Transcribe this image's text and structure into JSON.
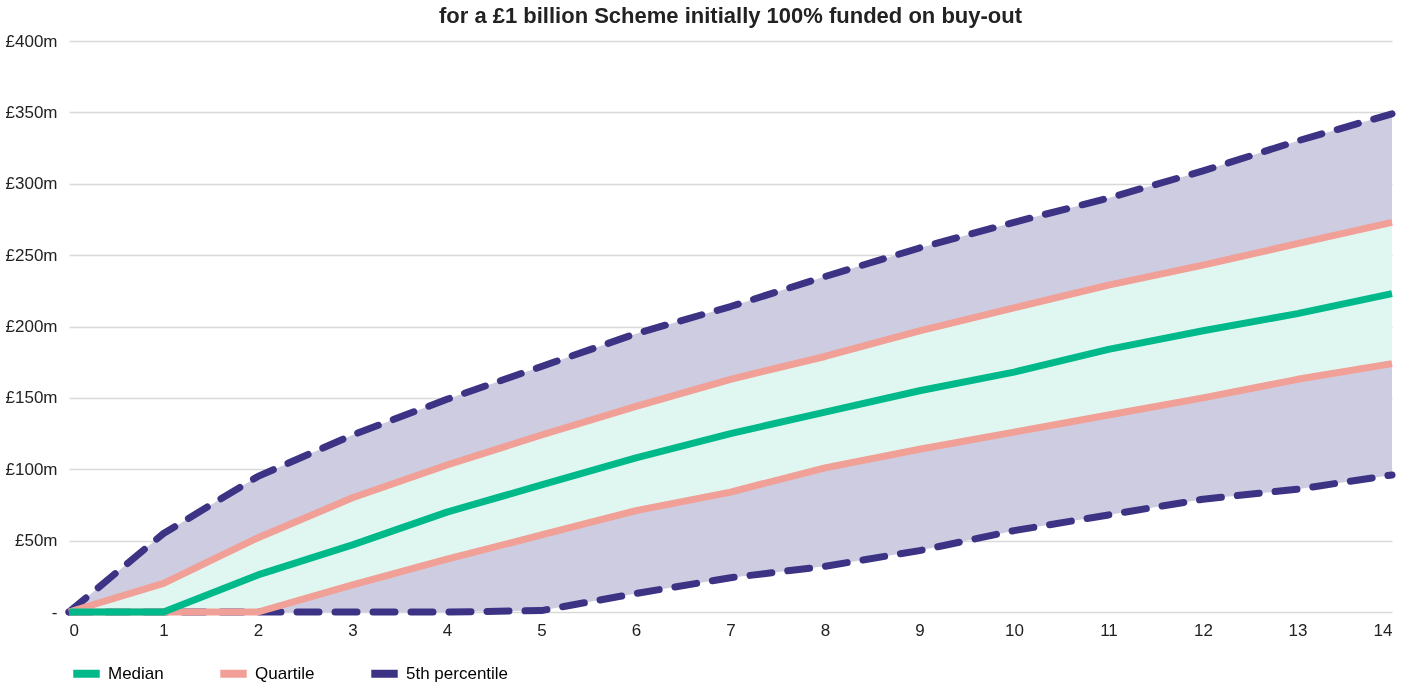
{
  "chart_data": {
    "type": "line",
    "title": "for a £1 billion Scheme initially 100% funded on buy-out",
    "x": [
      0,
      1,
      2,
      3,
      4,
      5,
      6,
      7,
      8,
      9,
      10,
      11,
      12,
      13,
      14
    ],
    "xlim": [
      0,
      14
    ],
    "xticks": [
      0,
      1,
      2,
      3,
      4,
      5,
      6,
      7,
      8,
      9,
      10,
      11,
      12,
      13,
      14
    ],
    "ylim": [
      0,
      400
    ],
    "yticks": [
      {
        "value": 0,
        "label": "-"
      },
      {
        "value": 50,
        "label": "£50m"
      },
      {
        "value": 100,
        "label": "£100m"
      },
      {
        "value": 150,
        "label": "£150m"
      },
      {
        "value": 200,
        "label": "£200m"
      },
      {
        "value": 250,
        "label": "£250m"
      },
      {
        "value": 300,
        "label": "£300m"
      },
      {
        "value": 350,
        "label": "£350m"
      },
      {
        "value": 400,
        "label": "£400m"
      }
    ],
    "grid": "y",
    "legend": "bottom",
    "marker": "none",
    "series": [
      {
        "name": "Median",
        "color": "#00b98a",
        "line_style": "solid",
        "values": [
          0,
          0,
          26,
          47,
          70,
          89,
          108,
          125,
          140,
          155,
          168,
          184,
          197,
          209,
          223
        ],
        "lower": [
          0,
          0,
          0,
          19,
          37,
          54,
          71,
          84,
          101,
          114,
          126,
          138,
          150,
          163,
          174
        ],
        "upper": [
          0,
          20,
          52,
          80,
          103,
          124,
          144,
          163,
          179,
          197,
          213,
          229,
          243,
          258,
          273
        ]
      },
      {
        "name": "Quartile",
        "color": "#f0a096",
        "line_style": "solid",
        "values": [
          0,
          20,
          52,
          80,
          103,
          124,
          144,
          163,
          179,
          197,
          213,
          229,
          243,
          258,
          273
        ]
      },
      {
        "color": "#f0a096",
        "line_style": "solid",
        "values": [
          0,
          0,
          0,
          19,
          37,
          54,
          71,
          84,
          101,
          114,
          126,
          138,
          150,
          163,
          174
        ]
      },
      {
        "name": "5th percentile",
        "color": "#3d3385",
        "line_style": "dashed",
        "values": [
          0,
          55,
          95,
          124,
          149,
          172,
          195,
          214,
          235,
          255,
          273,
          290,
          309,
          330,
          349
        ],
        "lower": [
          0,
          0,
          0,
          0,
          0,
          1,
          13,
          24,
          32,
          43,
          57,
          68,
          79,
          86,
          96
        ],
        "upper": [
          0,
          55,
          95,
          124,
          149,
          172,
          195,
          214,
          235,
          255,
          273,
          290,
          309,
          330,
          349
        ]
      },
      {
        "color": "#3d3385",
        "line_style": "dashed",
        "values": [
          0,
          0,
          0,
          0,
          0,
          1,
          13,
          24,
          32,
          43,
          57,
          68,
          79,
          86,
          96
        ]
      }
    ]
  }
}
